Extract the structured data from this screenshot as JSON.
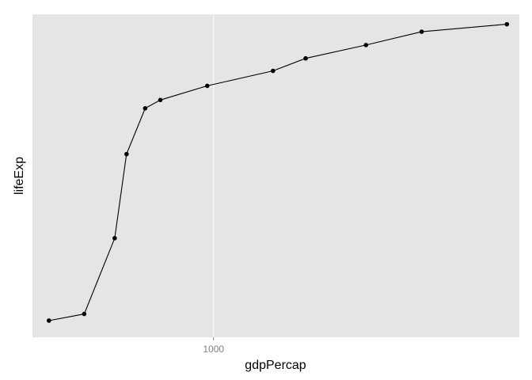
{
  "chart_data": {
    "type": "line",
    "title": "",
    "xlabel": "gdpPercap",
    "ylabel": "lifeExp",
    "x_scale": "log10",
    "x_ticks": [
      1000
    ],
    "x_tick_labels": [
      "1000"
    ],
    "y_ticks": [],
    "grid": true,
    "legend": "none",
    "series": [
      {
        "markers": true,
        "points": [
          {
            "x": 365,
            "y": 30.0
          },
          {
            "x": 453,
            "y": 30.8
          },
          {
            "x": 546,
            "y": 39.9
          },
          {
            "x": 587,
            "y": 50.0
          },
          {
            "x": 658,
            "y": 55.5
          },
          {
            "x": 722,
            "y": 56.5
          },
          {
            "x": 962,
            "y": 58.2
          },
          {
            "x": 1439,
            "y": 60.0
          },
          {
            "x": 1757,
            "y": 61.5
          },
          {
            "x": 2542,
            "y": 63.1
          },
          {
            "x": 3575,
            "y": 64.7
          },
          {
            "x": 6023,
            "y": 65.6
          }
        ]
      }
    ],
    "xlim": [
      330,
      6500
    ],
    "ylim": [
      28.0,
      66.8
    ],
    "colors": {
      "panel_background": "#e5e5e5",
      "grid": "#ffffff",
      "line": "#000000",
      "point": "#000000",
      "tick_label": "#7f7f7f",
      "axis_title": "#000000"
    }
  }
}
